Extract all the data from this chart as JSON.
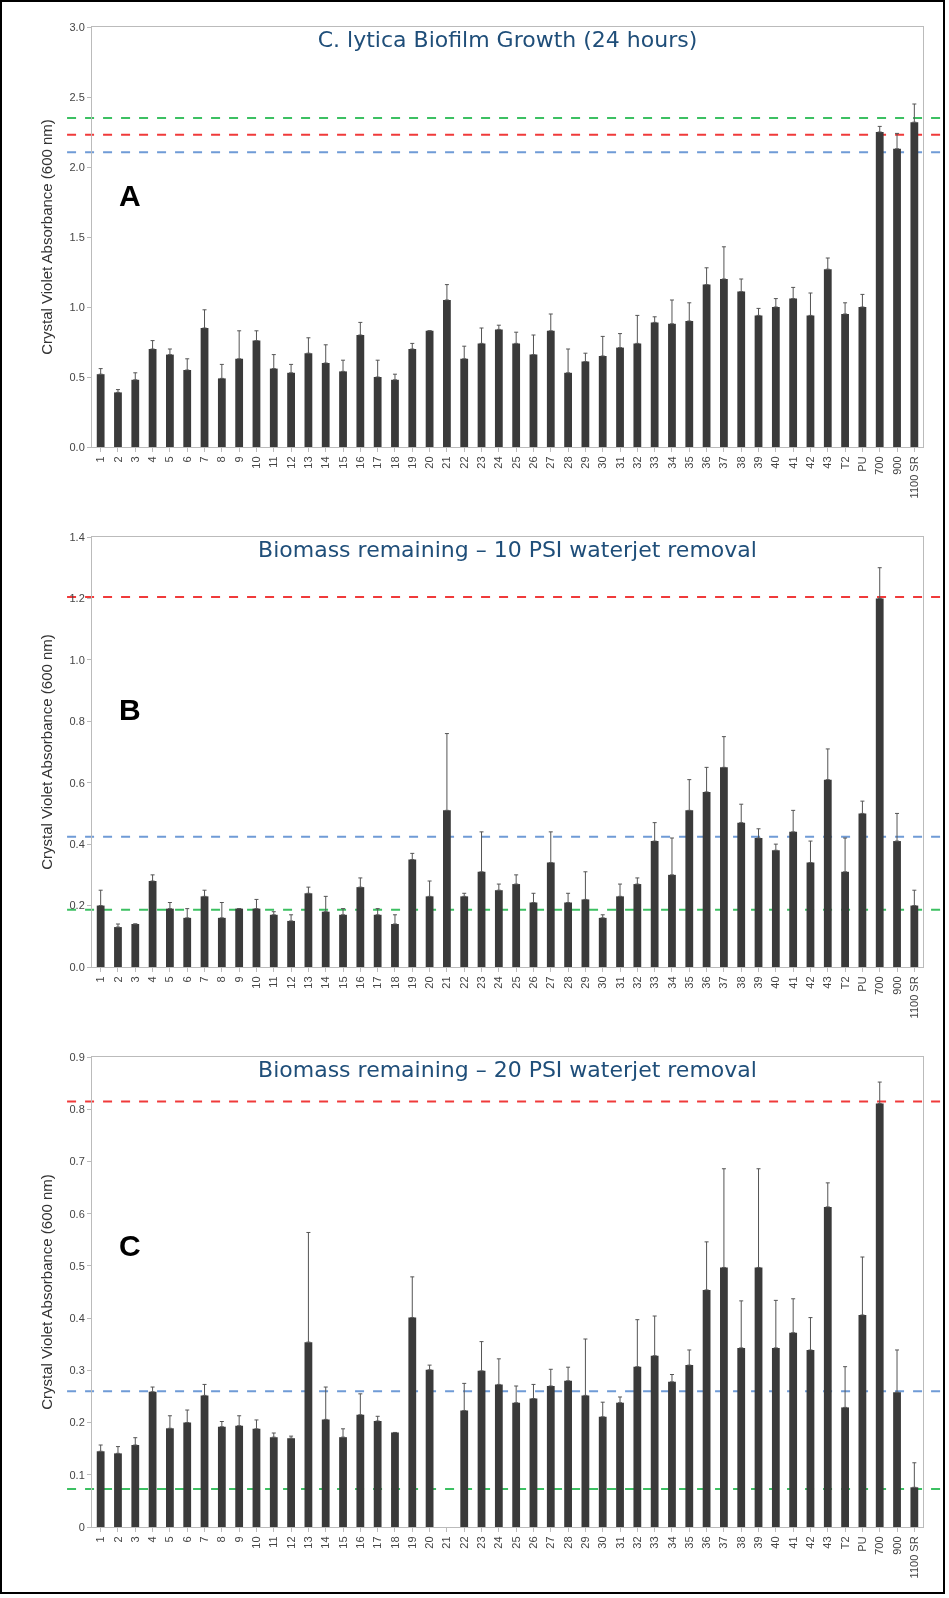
{
  "chart_data": [
    {
      "type": "bar",
      "title": "C. lytica Biofilm Growth (24 hours)",
      "ylabel": "Crystal Violet Absorbance (600 nm)",
      "categories": [
        "1",
        "2",
        "3",
        "4",
        "5",
        "6",
        "7",
        "8",
        "9",
        "10",
        "11",
        "12",
        "13",
        "14",
        "15",
        "16",
        "17",
        "18",
        "19",
        "20",
        "21",
        "22",
        "23",
        "24",
        "25",
        "26",
        "27",
        "28",
        "29",
        "30",
        "31",
        "32",
        "33",
        "34",
        "35",
        "36",
        "37",
        "38",
        "39",
        "40",
        "41",
        "42",
        "43",
        "T2",
        "PU",
        "700",
        "900",
        "1100 SR"
      ],
      "values": [
        0.52,
        0.39,
        0.48,
        0.7,
        0.66,
        0.55,
        0.85,
        0.49,
        0.63,
        0.76,
        0.56,
        0.53,
        0.67,
        0.6,
        0.54,
        0.8,
        0.5,
        0.48,
        0.7,
        0.83,
        1.05,
        0.63,
        0.74,
        0.84,
        0.74,
        0.66,
        0.83,
        0.53,
        0.61,
        0.65,
        0.71,
        0.74,
        0.89,
        0.88,
        0.9,
        1.16,
        1.2,
        1.11,
        0.94,
        1.0,
        1.06,
        0.94,
        1.27,
        0.95,
        1.0,
        2.25,
        2.13,
        2.32
      ],
      "errors": [
        [
          0.52,
          0.56
        ],
        [
          0.39,
          0.41
        ],
        [
          0.48,
          0.53
        ],
        [
          0.7,
          0.76
        ],
        [
          0.66,
          0.7
        ],
        [
          0.55,
          0.63
        ],
        [
          0.85,
          0.98
        ],
        [
          0.49,
          0.59
        ],
        [
          0.63,
          0.83
        ],
        [
          0.76,
          0.83
        ],
        [
          0.56,
          0.66
        ],
        [
          0.53,
          0.59
        ],
        [
          0.67,
          0.78
        ],
        [
          0.6,
          0.73
        ],
        [
          0.54,
          0.62
        ],
        [
          0.8,
          0.89
        ],
        [
          0.5,
          0.62
        ],
        [
          0.48,
          0.52
        ],
        [
          0.7,
          0.74
        ],
        null,
        [
          1.05,
          1.16
        ],
        [
          0.63,
          0.72
        ],
        [
          0.74,
          0.85
        ],
        [
          0.84,
          0.87
        ],
        [
          0.74,
          0.82
        ],
        [
          0.66,
          0.8
        ],
        [
          0.83,
          0.95
        ],
        [
          0.53,
          0.7
        ],
        [
          0.61,
          0.67
        ],
        [
          0.65,
          0.79
        ],
        [
          0.71,
          0.81
        ],
        [
          0.74,
          0.94
        ],
        [
          0.89,
          0.93
        ],
        [
          0.88,
          1.05
        ],
        [
          0.9,
          1.03
        ],
        [
          1.16,
          1.28
        ],
        [
          1.2,
          1.43
        ],
        [
          1.11,
          1.2
        ],
        [
          0.94,
          0.99
        ],
        [
          1.0,
          1.06
        ],
        [
          1.06,
          1.14
        ],
        [
          0.94,
          1.1
        ],
        [
          1.27,
          1.35
        ],
        [
          0.95,
          1.03
        ],
        [
          1.0,
          1.09
        ],
        [
          2.25,
          2.29
        ],
        [
          2.13,
          2.24
        ],
        [
          2.32,
          2.45
        ]
      ],
      "color": "#3a3a3a",
      "ylim": [
        0,
        3
      ],
      "yticks": [
        {
          "value": 0,
          "label": "0.0"
        },
        0.5,
        {
          "value": 1,
          "label": "1.0"
        },
        1.5,
        {
          "value": 2,
          "label": "2.0"
        },
        2.5,
        {
          "value": 3,
          "label": "3.0"
        }
      ],
      "grid": false,
      "ref_lines": [
        {
          "axis": "y",
          "value": 2.35,
          "color": "#3cc062",
          "line_style": "dashed"
        },
        {
          "axis": "y",
          "value": 2.23,
          "color": "#f03a3a",
          "line_style": "dashed"
        },
        {
          "axis": "y",
          "value": 2.105,
          "color": "#6f9bd6",
          "line_style": "dashed"
        }
      ],
      "annotations": [
        "A"
      ]
    },
    {
      "type": "bar",
      "title": "Biomass remaining – 10 PSI waterjet removal",
      "ylabel": "Crystal Violet Absorbance (600 nm)",
      "categories": [
        "1",
        "2",
        "3",
        "4",
        "5",
        "6",
        "7",
        "8",
        "9",
        "10",
        "11",
        "12",
        "13",
        "14",
        "15",
        "16",
        "17",
        "18",
        "19",
        "20",
        "21",
        "22",
        "23",
        "24",
        "25",
        "26",
        "27",
        "28",
        "29",
        "30",
        "31",
        "32",
        "33",
        "34",
        "35",
        "36",
        "37",
        "38",
        "39",
        "40",
        "41",
        "42",
        "43",
        "T2",
        "PU",
        "700",
        "900",
        "1100 SR"
      ],
      "values": [
        0.2,
        0.13,
        0.14,
        0.28,
        0.19,
        0.16,
        0.23,
        0.16,
        0.19,
        0.19,
        0.17,
        0.15,
        0.24,
        0.18,
        0.17,
        0.26,
        0.17,
        0.14,
        0.35,
        0.23,
        0.51,
        0.23,
        0.31,
        0.25,
        0.27,
        0.21,
        0.34,
        0.21,
        0.22,
        0.16,
        0.23,
        0.27,
        0.41,
        0.3,
        0.51,
        0.57,
        0.65,
        0.47,
        0.42,
        0.38,
        0.44,
        0.34,
        0.61,
        0.31,
        0.5,
        1.2,
        0.41,
        0.2
      ],
      "errors": [
        [
          0.2,
          0.25
        ],
        [
          0.13,
          0.14
        ],
        null,
        [
          0.28,
          0.3
        ],
        [
          0.19,
          0.21
        ],
        [
          0.16,
          0.19
        ],
        [
          0.23,
          0.25
        ],
        [
          0.16,
          0.21
        ],
        null,
        [
          0.19,
          0.22
        ],
        [
          0.17,
          0.18
        ],
        [
          0.15,
          0.17
        ],
        [
          0.24,
          0.26
        ],
        [
          0.18,
          0.23
        ],
        [
          0.17,
          0.19
        ],
        [
          0.26,
          0.29
        ],
        [
          0.17,
          0.19
        ],
        [
          0.14,
          0.17
        ],
        [
          0.35,
          0.37
        ],
        [
          0.23,
          0.28
        ],
        [
          0.51,
          0.76
        ],
        [
          0.23,
          0.24
        ],
        [
          0.31,
          0.44
        ],
        [
          0.25,
          0.27
        ],
        [
          0.27,
          0.3
        ],
        [
          0.21,
          0.24
        ],
        [
          0.34,
          0.44
        ],
        [
          0.21,
          0.24
        ],
        [
          0.22,
          0.31
        ],
        [
          0.16,
          0.17
        ],
        [
          0.23,
          0.27
        ],
        [
          0.27,
          0.29
        ],
        [
          0.41,
          0.47
        ],
        [
          0.3,
          0.42
        ],
        [
          0.51,
          0.61
        ],
        [
          0.57,
          0.65
        ],
        [
          0.65,
          0.75
        ],
        [
          0.47,
          0.53
        ],
        [
          0.42,
          0.45
        ],
        [
          0.38,
          0.4
        ],
        [
          0.44,
          0.51
        ],
        [
          0.34,
          0.41
        ],
        [
          0.61,
          0.71
        ],
        [
          0.31,
          0.42
        ],
        [
          0.5,
          0.54
        ],
        [
          1.2,
          1.3
        ],
        [
          0.41,
          0.5
        ],
        [
          0.2,
          0.25
        ]
      ],
      "color": "#3a3a3a",
      "ylim": [
        0,
        1.4
      ],
      "yticks": [
        {
          "value": 0,
          "label": "0.0"
        },
        0.2,
        0.4,
        0.6,
        0.8,
        {
          "value": 1,
          "label": "1.0"
        },
        1.2,
        1.4
      ],
      "grid": false,
      "ref_lines": [
        {
          "axis": "y",
          "value": 1.205,
          "color": "#f03a3a",
          "line_style": "dashed"
        },
        {
          "axis": "y",
          "value": 0.424,
          "color": "#6f9bd6",
          "line_style": "dashed"
        },
        {
          "axis": "y",
          "value": 0.186,
          "color": "#3cc062",
          "line_style": "dashed"
        }
      ],
      "annotations": [
        "B"
      ]
    },
    {
      "type": "bar",
      "title": "Biomass remaining – 20 PSI waterjet removal",
      "ylabel": "Crystal Violet Absorbance (600 nm)",
      "categories": [
        "1",
        "2",
        "3",
        "4",
        "5",
        "6",
        "7",
        "8",
        "9",
        "10",
        "11",
        "12",
        "13",
        "14",
        "15",
        "16",
        "17",
        "18",
        "19",
        "20",
        "21",
        "22",
        "23",
        "24",
        "25",
        "26",
        "27",
        "28",
        "29",
        "30",
        "31",
        "32",
        "33",
        "34",
        "35",
        "36",
        "37",
        "38",
        "39",
        "40",
        "41",
        "42",
        "43",
        "T2",
        "PU",
        "700",
        "900",
        "1100 SR"
      ],
      "values": [
        0.145,
        0.141,
        0.157,
        0.259,
        0.189,
        0.2,
        0.252,
        0.192,
        0.194,
        0.188,
        0.172,
        0.17,
        0.354,
        0.206,
        0.172,
        0.215,
        0.203,
        0.181,
        0.401,
        0.301,
        null,
        0.223,
        0.299,
        0.273,
        0.238,
        0.246,
        0.27,
        0.28,
        0.252,
        0.211,
        0.238,
        0.307,
        0.328,
        0.278,
        0.31,
        0.454,
        0.497,
        0.343,
        0.497,
        0.343,
        0.372,
        0.339,
        0.613,
        0.229,
        0.406,
        0.811,
        0.258,
        0.076
      ],
      "errors": [
        [
          0.145,
          0.157
        ],
        [
          0.141,
          0.154
        ],
        [
          0.157,
          0.171
        ],
        [
          0.259,
          0.268
        ],
        [
          0.189,
          0.213
        ],
        [
          0.2,
          0.224
        ],
        [
          0.252,
          0.273
        ],
        [
          0.192,
          0.202
        ],
        [
          0.194,
          0.213
        ],
        [
          0.188,
          0.205
        ],
        [
          0.172,
          0.18
        ],
        [
          0.17,
          0.174
        ],
        [
          0.354,
          0.564
        ],
        [
          0.206,
          0.268
        ],
        [
          0.172,
          0.188
        ],
        [
          0.215,
          0.255
        ],
        [
          0.203,
          0.212
        ],
        null,
        [
          0.401,
          0.479
        ],
        [
          0.301,
          0.31
        ],
        null,
        [
          0.223,
          0.275
        ],
        [
          0.299,
          0.355
        ],
        [
          0.273,
          0.322
        ],
        [
          0.238,
          0.27
        ],
        [
          0.246,
          0.273
        ],
        [
          0.27,
          0.302
        ],
        [
          0.28,
          0.306
        ],
        [
          0.252,
          0.36
        ],
        [
          0.211,
          0.239
        ],
        [
          0.238,
          0.249
        ],
        [
          0.307,
          0.397
        ],
        [
          0.328,
          0.404
        ],
        [
          0.278,
          0.292
        ],
        [
          0.31,
          0.339
        ],
        [
          0.454,
          0.546
        ],
        [
          0.497,
          0.686
        ],
        [
          0.343,
          0.433
        ],
        [
          0.497,
          0.686
        ],
        [
          0.343,
          0.434
        ],
        [
          0.372,
          0.437
        ],
        [
          0.339,
          0.401
        ],
        [
          0.613,
          0.659
        ],
        [
          0.229,
          0.307
        ],
        [
          0.406,
          0.517
        ],
        [
          0.811,
          0.852
        ],
        [
          0.258,
          0.339
        ],
        [
          0.076,
          0.123
        ]
      ],
      "color": "#3a3a3a",
      "ylim": [
        0,
        0.9
      ],
      "yticks": [
        0,
        0.1,
        0.2,
        0.3,
        0.4,
        0.5,
        0.6,
        0.7,
        0.8,
        0.9
      ],
      "grid": false,
      "ref_lines": [
        {
          "axis": "y",
          "value": 0.815,
          "color": "#f03a3a",
          "line_style": "dashed"
        },
        {
          "axis": "y",
          "value": 0.26,
          "color": "#6f9bd6",
          "line_style": "dashed"
        },
        {
          "axis": "y",
          "value": 0.073,
          "color": "#3cc062",
          "line_style": "dashed"
        }
      ],
      "annotations": [
        "C"
      ]
    }
  ]
}
